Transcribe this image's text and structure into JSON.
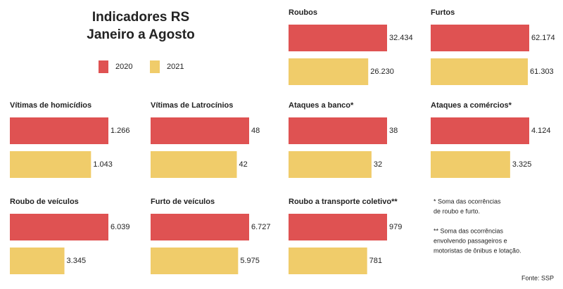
{
  "header": {
    "title": "Indicadores RS",
    "subtitle": "Janeiro a Agosto"
  },
  "chart_data": [
    {
      "type": "bar",
      "title": "Roubos",
      "series": [
        {
          "name": "2020",
          "color": "#df5252",
          "values": [
            32434
          ],
          "value_labels": [
            "32.434"
          ]
        },
        {
          "name": "2021",
          "color": "#f0cc6a",
          "values": [
            26230
          ],
          "value_labels": [
            "26.230"
          ]
        }
      ]
    },
    {
      "type": "bar",
      "title": "Furtos",
      "series": [
        {
          "name": "2020",
          "color": "#df5252",
          "values": [
            62174
          ],
          "value_labels": [
            "62.174"
          ]
        },
        {
          "name": "2021",
          "color": "#f0cc6a",
          "values": [
            61303
          ],
          "value_labels": [
            "61.303"
          ]
        }
      ]
    },
    {
      "type": "bar",
      "title": "Vítimas de homicídios",
      "series": [
        {
          "name": "2020",
          "color": "#df5252",
          "values": [
            1266
          ],
          "value_labels": [
            "1.266"
          ]
        },
        {
          "name": "2021",
          "color": "#f0cc6a",
          "values": [
            1043
          ],
          "value_labels": [
            "1.043"
          ]
        }
      ]
    },
    {
      "type": "bar",
      "title": "Vítimas de Latrocínios",
      "series": [
        {
          "name": "2020",
          "color": "#df5252",
          "values": [
            48
          ]
        },
        {
          "name": "2021",
          "color": "#f0cc6a",
          "values": [
            42
          ]
        }
      ]
    },
    {
      "type": "bar",
      "title": "Ataques a banco*",
      "series": [
        {
          "name": "2020",
          "color": "#df5252",
          "values": [
            38
          ]
        },
        {
          "name": "2021",
          "color": "#f0cc6a",
          "values": [
            32
          ]
        }
      ]
    },
    {
      "type": "bar",
      "title": "Ataques a comércios*",
      "series": [
        {
          "name": "2020",
          "color": "#df5252",
          "values": [
            4124
          ],
          "value_labels": [
            "4.124"
          ]
        },
        {
          "name": "2021",
          "color": "#f0cc6a",
          "values": [
            3325
          ],
          "value_labels": [
            "3.325"
          ]
        }
      ]
    },
    {
      "type": "bar",
      "title": "Roubo de veículos",
      "series": [
        {
          "name": "2020",
          "color": "#df5252",
          "values": [
            6039
          ],
          "value_labels": [
            "6.039"
          ]
        },
        {
          "name": "2021",
          "color": "#f0cc6a",
          "values": [
            3345
          ],
          "value_labels": [
            "3.345"
          ]
        }
      ]
    },
    {
      "type": "bar",
      "title": "Furto de veículos",
      "series": [
        {
          "name": "2020",
          "color": "#df5252",
          "values": [
            6727
          ],
          "value_labels": [
            "6.727"
          ]
        },
        {
          "name": "2021",
          "color": "#f0cc6a",
          "values": [
            5975
          ],
          "value_labels": [
            "5.975"
          ]
        }
      ]
    },
    {
      "type": "bar",
      "title": "Roubo a transporte coletivo**",
      "series": [
        {
          "name": "2020",
          "color": "#df5252",
          "values": [
            979
          ]
        },
        {
          "name": "2021",
          "color": "#f0cc6a",
          "values": [
            781
          ]
        }
      ]
    }
  ],
  "notes": [
    [
      "* Soma das ocorrências",
      "de roubo e furto."
    ],
    [
      "** Soma das ocorrências",
      "envolvendo passageiros e",
      "motoristas de ônibus e lotação."
    ]
  ],
  "source": "Fonte: SSP"
}
